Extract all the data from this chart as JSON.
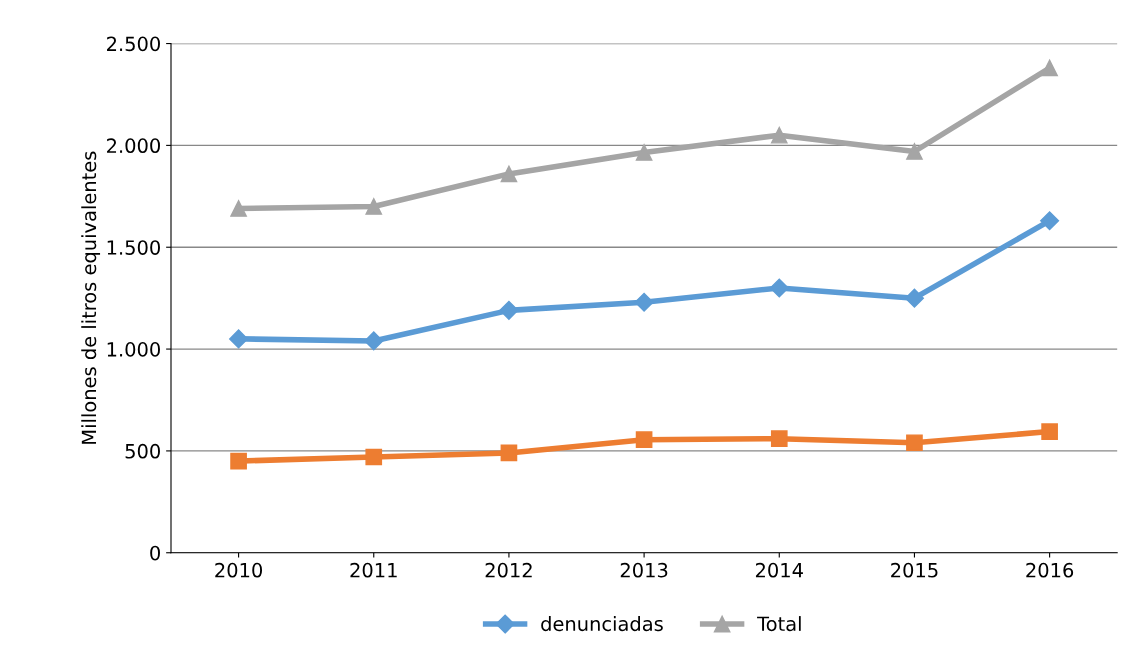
{
  "chart_data": {
    "type": "line",
    "ylabel": "Millones de litros equivalentes",
    "categories": [
      "2010",
      "2011",
      "2012",
      "2013",
      "2014",
      "2015",
      "2016"
    ],
    "series": [
      {
        "name": "denunciadas",
        "color": "#5b9bd5",
        "marker": "diamond",
        "values": [
          1050,
          1040,
          1190,
          1230,
          1300,
          1250,
          1630
        ]
      },
      {
        "color": "#ed7d31",
        "marker": "square",
        "values": [
          450,
          470,
          490,
          555,
          560,
          540,
          595
        ]
      },
      {
        "name": "Total",
        "color": "#a5a5a5",
        "marker": "triangle",
        "values": [
          1690,
          1700,
          1860,
          1965,
          2050,
          1970,
          2380
        ]
      }
    ],
    "ylim": [
      0,
      2500
    ],
    "yticks": [
      {
        "value": 0,
        "label": "0"
      },
      {
        "value": 500,
        "label": "500"
      },
      {
        "value": 1000,
        "label": "1.000"
      },
      {
        "value": 1500,
        "label": "1.500"
      },
      {
        "value": 2000,
        "label": "2.000"
      },
      {
        "value": 2500,
        "label": "2.500"
      }
    ],
    "grid": "y",
    "legend": "bottom"
  }
}
